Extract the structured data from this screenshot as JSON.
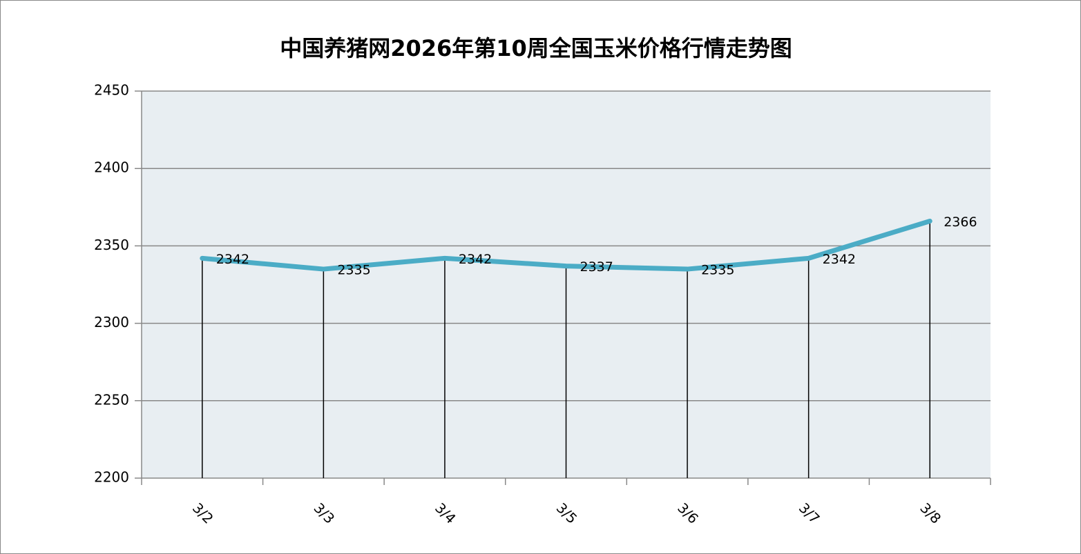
{
  "chart_data": {
    "type": "line",
    "title": "中国养猪网2026年第10周全国玉米价格行情走势图",
    "categories": [
      "3/2",
      "3/3",
      "3/4",
      "3/5",
      "3/6",
      "3/7",
      "3/8"
    ],
    "values": [
      2342,
      2335,
      2342,
      2337,
      2335,
      2342,
      2366
    ],
    "color": "#4bacc6",
    "ylim": [
      2200,
      2450
    ],
    "yticks": [
      2200,
      2250,
      2300,
      2350,
      2400,
      2450
    ],
    "grid": true,
    "drop_lines": true
  }
}
